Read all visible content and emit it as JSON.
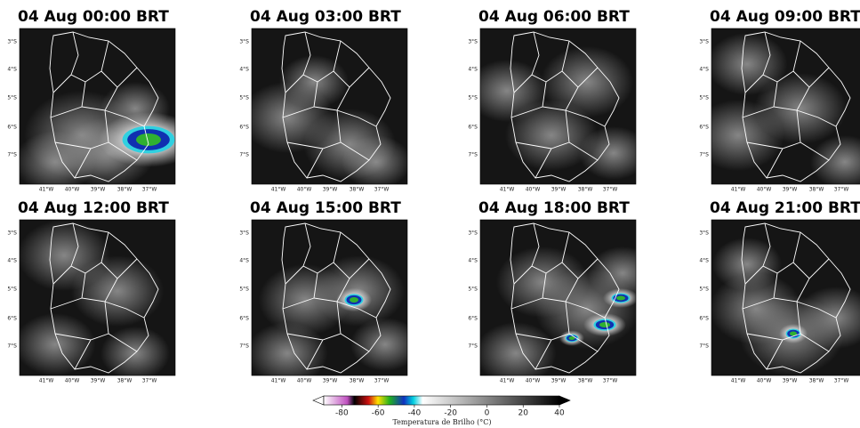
{
  "panels": [
    {
      "title": "04 Aug 00:00 BRT"
    },
    {
      "title": "04 Aug 03:00 BRT"
    },
    {
      "title": "04 Aug 06:00 BRT"
    },
    {
      "title": "04 Aug 09:00 BRT"
    },
    {
      "title": "04 Aug 12:00 BRT"
    },
    {
      "title": "04 Aug 15:00 BRT"
    },
    {
      "title": "04 Aug 18:00 BRT"
    },
    {
      "title": "04 Aug 21:00 BRT"
    }
  ],
  "lat_ticks": [
    "3°S",
    "4°S",
    "5°S",
    "6°S",
    "7°S"
  ],
  "lon_ticks": [
    "41°W",
    "40°W",
    "39°W",
    "38°W",
    "37°W"
  ],
  "colorbar": {
    "label": "Temperatura de Brilho (°C)",
    "lim": [
      -90,
      40
    ],
    "ticks": [
      -80,
      -60,
      -40,
      -20,
      0,
      20,
      40
    ]
  }
}
